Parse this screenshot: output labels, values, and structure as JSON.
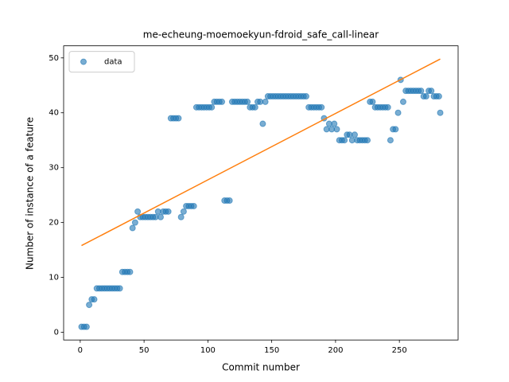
{
  "chart_data": {
    "type": "scatter",
    "title": "me-echeung-moemoekyun-fdroid_safe_call-linear",
    "xlabel": "Commit number",
    "ylabel": "Number of instance of a feature",
    "series": [
      {
        "name": "data",
        "color": "#1f77b4",
        "x": [
          1,
          3,
          5,
          7,
          9,
          11,
          13,
          15,
          17,
          19,
          21,
          23,
          25,
          27,
          29,
          31,
          33,
          35,
          37,
          39,
          41,
          43,
          45,
          47,
          49,
          51,
          53,
          55,
          57,
          59,
          61,
          63,
          65,
          67,
          69,
          71,
          73,
          75,
          77,
          79,
          81,
          83,
          85,
          87,
          89,
          91,
          93,
          95,
          97,
          99,
          101,
          103,
          105,
          107,
          109,
          111,
          113,
          115,
          117,
          119,
          121,
          123,
          125,
          127,
          129,
          131,
          133,
          135,
          137,
          139,
          141,
          143,
          145,
          147,
          149,
          151,
          153,
          155,
          157,
          159,
          161,
          163,
          165,
          167,
          169,
          171,
          173,
          175,
          177,
          179,
          181,
          183,
          185,
          187,
          189,
          191,
          193,
          195,
          197,
          199,
          201,
          203,
          205,
          207,
          209,
          211,
          213,
          215,
          217,
          219,
          221,
          223,
          225,
          227,
          229,
          231,
          233,
          235,
          237,
          239,
          241,
          243,
          245,
          247,
          249,
          251,
          253,
          255,
          257,
          259,
          261,
          263,
          265,
          267,
          269,
          271,
          273,
          275,
          277,
          279,
          281,
          282
        ],
        "values": [
          1,
          1,
          1,
          5,
          6,
          6,
          8,
          8,
          8,
          8,
          8,
          8,
          8,
          8,
          8,
          8,
          11,
          11,
          11,
          11,
          19,
          20,
          22,
          21,
          21,
          21,
          21,
          21,
          21,
          21,
          22,
          21,
          22,
          22,
          22,
          39,
          39,
          39,
          39,
          21,
          22,
          23,
          23,
          23,
          23,
          41,
          41,
          41,
          41,
          41,
          41,
          41,
          42,
          42,
          42,
          42,
          24,
          24,
          24,
          42,
          42,
          42,
          42,
          42,
          42,
          42,
          41,
          41,
          41,
          42,
          42,
          38,
          42,
          43,
          43,
          43,
          43,
          43,
          43,
          43,
          43,
          43,
          43,
          43,
          43,
          43,
          43,
          43,
          43,
          41,
          41,
          41,
          41,
          41,
          41,
          39,
          37,
          38,
          37,
          38,
          37,
          35,
          35,
          35,
          36,
          36,
          35,
          36,
          35,
          35,
          35,
          35,
          35,
          42,
          42,
          41,
          41,
          41,
          41,
          41,
          41,
          35,
          37,
          37,
          40,
          46,
          42,
          44,
          44,
          44,
          44,
          44,
          44,
          44,
          43,
          43,
          44,
          44,
          43,
          43,
          43,
          40
        ]
      },
      {
        "color": "#ff7f0e",
        "line": true,
        "x": [
          1,
          282
        ],
        "values": [
          15.8,
          49.8
        ]
      }
    ],
    "xlim": [
      -13,
      296
    ],
    "ylim": [
      -1.4,
      52.2
    ],
    "xticks": [
      0,
      50,
      100,
      150,
      200,
      250
    ],
    "yticks": [
      0,
      10,
      20,
      30,
      40,
      50
    ],
    "legend": "upper left"
  }
}
